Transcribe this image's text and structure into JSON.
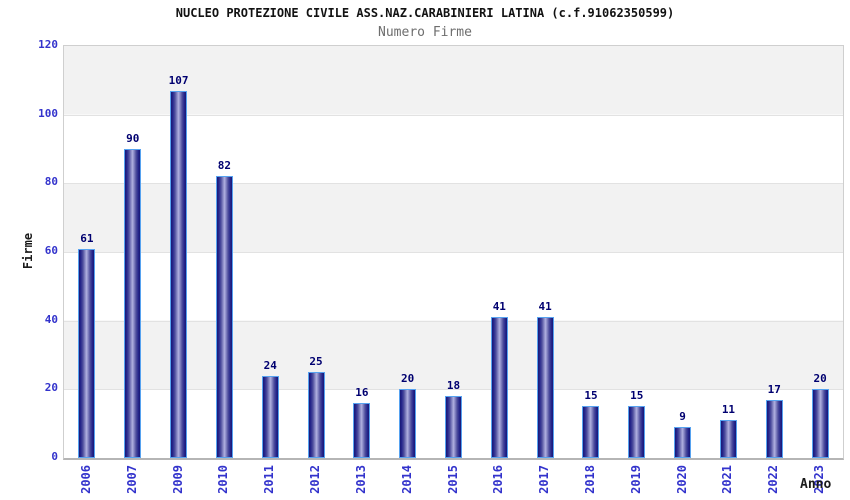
{
  "chart_data": {
    "type": "bar",
    "title": "NUCLEO PROTEZIONE CIVILE ASS.NAZ.CARABINIERI LATINA (c.f.91062350599)",
    "subtitle": "Numero Firme",
    "xlabel": "Anno",
    "ylabel": "Firme",
    "categories": [
      "2006",
      "2007",
      "2009",
      "2010",
      "2011",
      "2012",
      "2013",
      "2014",
      "2015",
      "2016",
      "2017",
      "2018",
      "2019",
      "2020",
      "2021",
      "2022",
      "2023"
    ],
    "values": [
      61,
      90,
      107,
      82,
      24,
      25,
      16,
      20,
      18,
      41,
      41,
      15,
      15,
      9,
      11,
      17,
      20
    ],
    "ylim": [
      0,
      120
    ],
    "ytick_step": 20,
    "yticks": [
      0,
      20,
      40,
      60,
      80,
      100,
      120
    ],
    "grid": true,
    "legend": "none",
    "colors": {
      "bar_edge": "#181875",
      "bar_center": "#b1b1e0",
      "bar_border": "#56a2f0",
      "tick_label": "#3333cc",
      "value_label": "#000070",
      "band": "#f2f2f2",
      "gridline": "#e2e2e2",
      "plot_border": "#cfcfcf",
      "title": "#121212",
      "subtitle": "#6e6e6e",
      "axis_title": "#1a1a1a"
    }
  }
}
